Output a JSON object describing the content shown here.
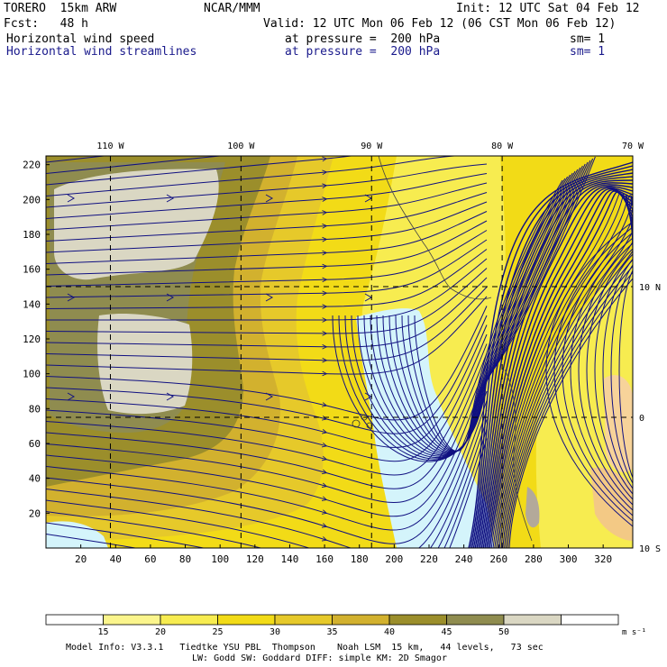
{
  "header": {
    "model": "TORERO  15km ARW",
    "center": "NCAR/MMM",
    "init": "Init: 12 UTC Sat 04 Feb 12",
    "fcst": "Fcst:   48 h",
    "valid": "Valid: 12 UTC Mon 06 Feb 12 (06 CST Mon 06 Feb 12)",
    "field1_name": "Horizontal wind speed",
    "field1_level": "at pressure =  200 hPa",
    "field1_sm": "sm= 1",
    "field2_name": "Horizontal wind streamlines",
    "field2_level": "at pressure =  200 hPa",
    "field2_sm": "sm= 1"
  },
  "footer": {
    "line1": "Model Info: V3.3.1   Tiedtke YSU PBL  Thompson    Noah LSM  15 km,   44 levels,   73 sec",
    "line2": "LW: Godd SW: Goddard DIFF: simple KM: 2D Smagor"
  },
  "chart_data": {
    "type": "heatmap",
    "title": "Horizontal wind speed / Horizontal wind streamlines at pressure = 200 hPa",
    "x_ticks": [
      20,
      40,
      60,
      80,
      100,
      120,
      140,
      160,
      180,
      200,
      220,
      240,
      260,
      280,
      300,
      320
    ],
    "y_ticks": [
      20,
      40,
      60,
      80,
      100,
      120,
      140,
      160,
      180,
      200,
      220
    ],
    "xlim": [
      0,
      337
    ],
    "ylim": [
      0,
      225
    ],
    "lon_labels": [
      {
        "label": "110 W",
        "x": 37
      },
      {
        "label": "100 W",
        "x": 112
      },
      {
        "label": "90 W",
        "x": 187
      },
      {
        "label": "80 W",
        "x": 262
      },
      {
        "label": "70 W",
        "x": 337
      }
    ],
    "lat_labels": [
      {
        "label": "10 N",
        "y": 150
      },
      {
        "label": "0",
        "y": 75
      },
      {
        "label": "10 S",
        "y": 0
      }
    ],
    "colorbar": {
      "levels": [
        15,
        20,
        25,
        30,
        35,
        40,
        45,
        50
      ],
      "colors": [
        "#ffffff",
        "#fbf58c",
        "#f7ec50",
        "#f2db17",
        "#e6c92a",
        "#d2b12e",
        "#9b8e2b",
        "#8f8c4f",
        "#dad7c3",
        "#ffffff"
      ],
      "units": "m s⁻¹"
    },
    "streamline_color": "#101081",
    "grid": true
  }
}
